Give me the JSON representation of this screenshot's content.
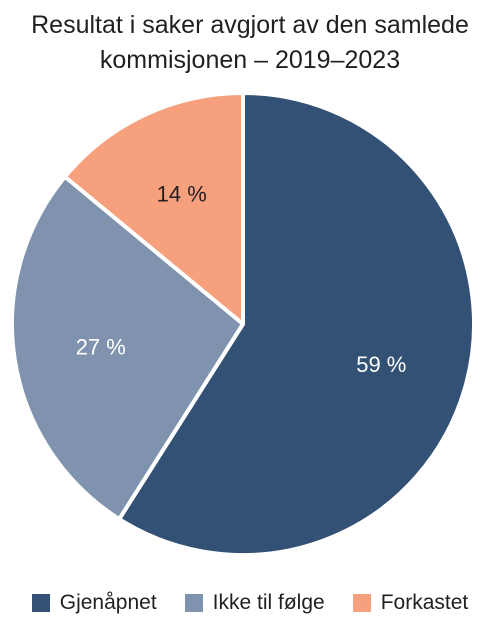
{
  "chart_data": {
    "type": "pie",
    "title_lines": [
      "Resultat i saker avgjort av den samlede",
      "kommisjonen – 2019–2023"
    ],
    "categories": [
      "Gjenåpnet",
      "Ikke til følge",
      "Forkastet"
    ],
    "values": [
      59,
      27,
      14
    ],
    "value_labels": [
      "59 %",
      "27 %",
      "14 %"
    ],
    "colors": [
      "#335174",
      "#7f93af",
      "#f7a07e"
    ],
    "label_colors": [
      "#ffffff",
      "#ffffff",
      "#231f20"
    ],
    "start_angle_deg": 0,
    "direction": "clockwise",
    "legend_position": "bottom"
  }
}
